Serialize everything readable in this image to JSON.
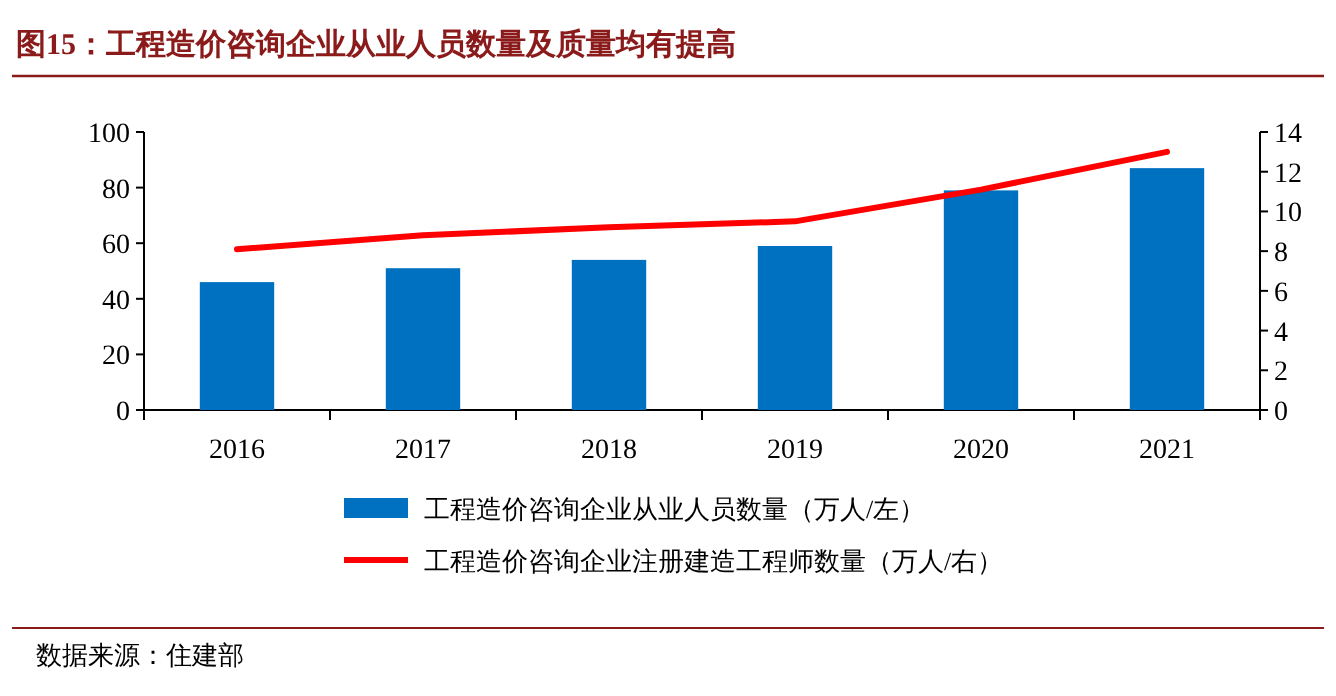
{
  "chart_data": {
    "type": "bar",
    "title": "图15：工程造价咨询企业从业人员数量及质量均有提高",
    "categories": [
      "2016",
      "2017",
      "2018",
      "2019",
      "2020",
      "2021"
    ],
    "series": [
      {
        "name": "工程造价咨询企业从业人员数量（万人/左）",
        "color": "#0070c0",
        "values": [
          46,
          51,
          54,
          59,
          79,
          87
        ]
      },
      {
        "name": "工程造价咨询企业注册建造工程师数量（万人/右）",
        "type": "line",
        "axis": "y2",
        "color": "#ff0000",
        "values": [
          8.1,
          8.8,
          9.2,
          9.5,
          11.1,
          13.0
        ]
      }
    ],
    "ylim": [
      0,
      100
    ],
    "yticks": [
      0,
      20,
      40,
      60,
      80,
      100
    ],
    "y2lim": [
      0,
      14
    ],
    "y2ticks": [
      0,
      2,
      4,
      6,
      8,
      10,
      12,
      14
    ],
    "legend": "bottom",
    "annotations": [
      "数据来源：住建部"
    ]
  }
}
